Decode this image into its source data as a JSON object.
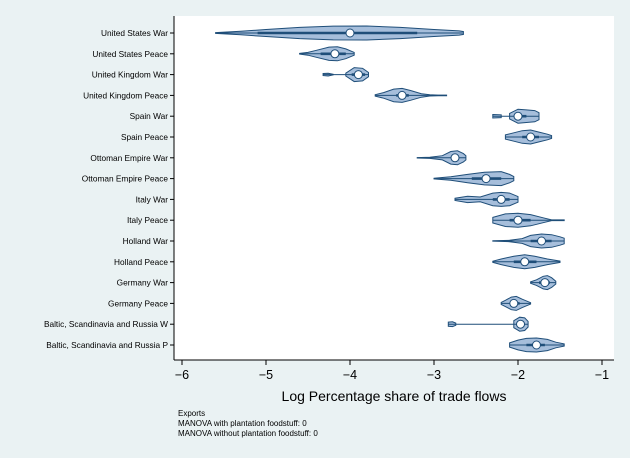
{
  "chart_data": {
    "type": "violin",
    "xlabel": "Log Percentage share of trade flows",
    "xlim": [
      -6,
      -1
    ],
    "xticks": [
      -6,
      -5,
      -4,
      -3,
      -2,
      -1
    ],
    "grid": false,
    "colors": {
      "fill": "#a6bedb",
      "outline": "#1f4e79",
      "line": "#1f4e79",
      "marker": "#ffffff",
      "background": "#eaf2f3",
      "plot": "#ffffff"
    },
    "categories": [
      "United States War",
      "United States Peace",
      "United Kingdom War",
      "United Kingdom Peace",
      "Spain War",
      "Spain Peace",
      "Ottoman Empire War",
      "Ottoman Empire Peace",
      "Italy War",
      "Italy Peace",
      "Holland War",
      "Holland Peace",
      "Germany War",
      "Germany Peace",
      "Baltic, Scandinavia and Russia W",
      "Baltic, Scandinavia and Russia P"
    ],
    "violins": [
      {
        "min": -5.6,
        "q1": -5.1,
        "median": -4.0,
        "q3": -3.2,
        "max": -2.65,
        "shape": [
          [
            -5.6,
            0.05
          ],
          [
            -5.3,
            0.25
          ],
          [
            -5.0,
            0.5
          ],
          [
            -4.6,
            0.8
          ],
          [
            -4.2,
            0.98
          ],
          [
            -3.8,
            1.0
          ],
          [
            -3.4,
            0.8
          ],
          [
            -3.0,
            0.5
          ],
          [
            -2.7,
            0.3
          ],
          [
            -2.65,
            0.2
          ]
        ]
      },
      {
        "min": -4.6,
        "q1": -4.35,
        "median": -4.18,
        "q3": -4.05,
        "max": -3.95,
        "shape": [
          [
            -4.6,
            0.05
          ],
          [
            -4.5,
            0.2
          ],
          [
            -4.4,
            0.5
          ],
          [
            -4.25,
            0.95
          ],
          [
            -4.15,
            1.0
          ],
          [
            -4.05,
            0.7
          ],
          [
            -3.95,
            0.2
          ]
        ]
      },
      {
        "min": -4.32,
        "q1": -3.98,
        "median": -3.9,
        "q3": -3.82,
        "max": -3.78,
        "shape": [
          [
            -4.32,
            0.15
          ],
          [
            -4.26,
            0.2
          ],
          [
            -4.2,
            0.05
          ],
          [
            -4.1,
            0.0
          ],
          [
            -4.05,
            0.2
          ],
          [
            -3.95,
            1.0
          ],
          [
            -3.85,
            0.9
          ],
          [
            -3.78,
            0.3
          ]
        ]
      },
      {
        "min": -3.7,
        "q1": -3.45,
        "median": -3.38,
        "q3": -3.3,
        "max": -2.85,
        "shape": [
          [
            -3.7,
            0.1
          ],
          [
            -3.6,
            0.4
          ],
          [
            -3.48,
            0.9
          ],
          [
            -3.38,
            1.0
          ],
          [
            -3.28,
            0.7
          ],
          [
            -3.15,
            0.25
          ],
          [
            -3.05,
            0.08
          ],
          [
            -2.95,
            0.05
          ],
          [
            -2.85,
            0.05
          ]
        ]
      },
      {
        "min": -2.3,
        "q1": -2.05,
        "median": -2.0,
        "q3": -1.9,
        "max": -1.75,
        "shape": [
          [
            -2.3,
            0.25
          ],
          [
            -2.2,
            0.2
          ],
          [
            -2.15,
            0.0
          ],
          [
            -2.1,
            0.4
          ],
          [
            -2.0,
            1.0
          ],
          [
            -1.9,
            0.9
          ],
          [
            -1.8,
            0.8
          ],
          [
            -1.75,
            0.5
          ]
        ]
      },
      {
        "min": -2.15,
        "q1": -1.95,
        "median": -1.85,
        "q3": -1.75,
        "max": -1.6,
        "shape": [
          [
            -2.15,
            0.3
          ],
          [
            -2.05,
            0.6
          ],
          [
            -1.95,
            0.9
          ],
          [
            -1.85,
            1.0
          ],
          [
            -1.75,
            0.7
          ],
          [
            -1.65,
            0.4
          ],
          [
            -1.6,
            0.2
          ]
        ]
      },
      {
        "min": -3.2,
        "q1": -2.8,
        "median": -2.75,
        "q3": -2.7,
        "max": -2.62,
        "shape": [
          [
            -3.2,
            0.03
          ],
          [
            -3.05,
            0.08
          ],
          [
            -2.9,
            0.3
          ],
          [
            -2.8,
            0.9
          ],
          [
            -2.72,
            1.0
          ],
          [
            -2.65,
            0.6
          ],
          [
            -2.62,
            0.3
          ]
        ]
      },
      {
        "min": -3.0,
        "q1": -2.55,
        "median": -2.38,
        "q3": -2.2,
        "max": -2.05,
        "shape": [
          [
            -3.0,
            0.05
          ],
          [
            -2.8,
            0.25
          ],
          [
            -2.6,
            0.6
          ],
          [
            -2.4,
            0.9
          ],
          [
            -2.2,
            1.0
          ],
          [
            -2.1,
            0.6
          ],
          [
            -2.05,
            0.3
          ]
        ]
      },
      {
        "min": -2.75,
        "q1": -2.3,
        "median": -2.2,
        "q3": -2.1,
        "max": -2.0,
        "shape": [
          [
            -2.75,
            0.15
          ],
          [
            -2.6,
            0.45
          ],
          [
            -2.45,
            0.35
          ],
          [
            -2.3,
            0.9
          ],
          [
            -2.2,
            1.0
          ],
          [
            -2.1,
            0.9
          ],
          [
            -2.0,
            0.4
          ]
        ]
      },
      {
        "min": -2.3,
        "q1": -2.1,
        "median": -2.0,
        "q3": -1.85,
        "max": -1.45,
        "shape": [
          [
            -2.3,
            0.4
          ],
          [
            -2.15,
            0.9
          ],
          [
            -2.0,
            1.0
          ],
          [
            -1.85,
            0.8
          ],
          [
            -1.7,
            0.35
          ],
          [
            -1.6,
            0.05
          ],
          [
            -1.45,
            0.05
          ]
        ]
      },
      {
        "min": -2.3,
        "q1": -1.85,
        "median": -1.72,
        "q3": -1.6,
        "max": -1.45,
        "shape": [
          [
            -2.3,
            0.03
          ],
          [
            -2.1,
            0.1
          ],
          [
            -1.95,
            0.35
          ],
          [
            -1.85,
            0.8
          ],
          [
            -1.72,
            1.0
          ],
          [
            -1.6,
            0.9
          ],
          [
            -1.5,
            0.6
          ],
          [
            -1.45,
            0.4
          ]
        ]
      },
      {
        "min": -2.3,
        "q1": -2.05,
        "median": -1.92,
        "q3": -1.78,
        "max": -1.5,
        "shape": [
          [
            -2.3,
            0.08
          ],
          [
            -2.2,
            0.4
          ],
          [
            -2.05,
            0.8
          ],
          [
            -1.92,
            1.0
          ],
          [
            -1.8,
            0.8
          ],
          [
            -1.65,
            0.4
          ],
          [
            -1.5,
            0.1
          ]
        ]
      },
      {
        "min": -1.85,
        "q1": -1.75,
        "median": -1.68,
        "q3": -1.62,
        "max": -1.55,
        "shape": [
          [
            -1.85,
            0.1
          ],
          [
            -1.78,
            0.4
          ],
          [
            -1.7,
            0.9
          ],
          [
            -1.65,
            1.0
          ],
          [
            -1.6,
            0.7
          ],
          [
            -1.55,
            0.2
          ]
        ]
      },
      {
        "min": -2.2,
        "q1": -2.1,
        "median": -2.05,
        "q3": -1.98,
        "max": -1.85,
        "shape": [
          [
            -2.2,
            0.15
          ],
          [
            -2.15,
            0.45
          ],
          [
            -2.08,
            0.9
          ],
          [
            -2.02,
            1.0
          ],
          [
            -1.95,
            0.6
          ],
          [
            -1.85,
            0.1
          ]
        ]
      },
      {
        "min": -2.83,
        "q1": -2.02,
        "median": -1.97,
        "q3": -1.92,
        "max": -1.88,
        "shape": [
          [
            -2.83,
            0.3
          ],
          [
            -2.78,
            0.35
          ],
          [
            -2.74,
            0.15
          ],
          [
            -2.6,
            0.0
          ],
          [
            -2.1,
            0.0
          ],
          [
            -2.05,
            0.5
          ],
          [
            -1.98,
            1.0
          ],
          [
            -1.92,
            0.9
          ],
          [
            -1.88,
            0.4
          ]
        ]
      },
      {
        "min": -2.1,
        "q1": -1.9,
        "median": -1.78,
        "q3": -1.68,
        "max": -1.45,
        "shape": [
          [
            -2.1,
            0.3
          ],
          [
            -2.0,
            0.7
          ],
          [
            -1.9,
            0.95
          ],
          [
            -1.78,
            1.0
          ],
          [
            -1.65,
            0.8
          ],
          [
            -1.55,
            0.4
          ],
          [
            -1.45,
            0.15
          ]
        ]
      }
    ],
    "notes": [
      "Exports",
      "MANOVA with plantation foodstuff: 0",
      "MANOVA without plantation foodstuff: 0"
    ]
  }
}
